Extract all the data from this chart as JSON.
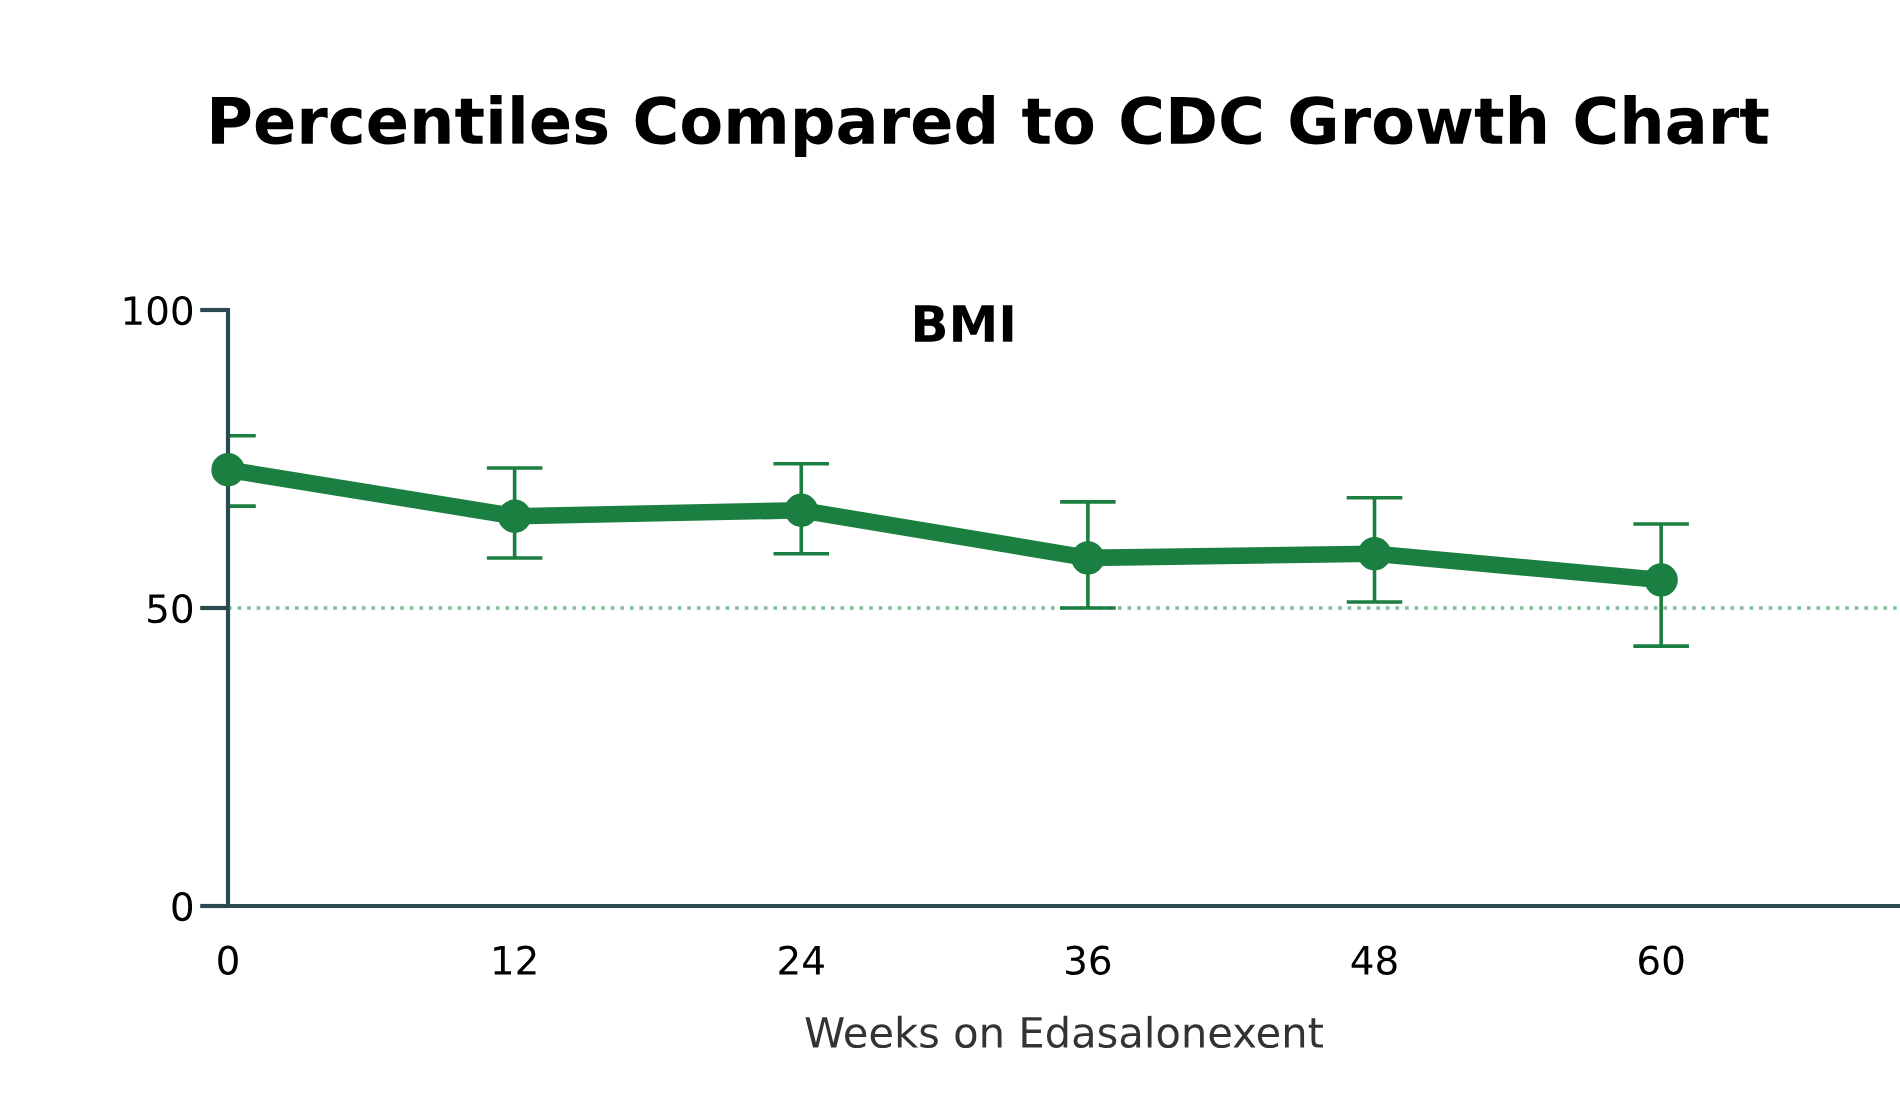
{
  "chart_data": {
    "type": "line",
    "title": "Percentiles Compared to CDC Growth Chart",
    "subtitle": "BMI",
    "xlabel": "Weeks on Edasalonexent",
    "x": [
      0,
      12,
      24,
      36,
      48,
      60
    ],
    "series": [
      {
        "color": "#1a7f40",
        "values": [
          73.2,
          65.4,
          66.4,
          58.4,
          59.1,
          54.7
        ],
        "errors": [
          [
            67.1,
            78.9
          ],
          [
            58.4,
            73.5
          ],
          [
            59.1,
            74.2
          ],
          [
            50.0,
            67.8
          ],
          [
            51.0,
            68.5
          ],
          [
            43.6,
            64.1
          ]
        ]
      }
    ],
    "xlim": [
      0,
      70
    ],
    "xticks": [
      0,
      12,
      24,
      36,
      48,
      60
    ],
    "ylim": [
      0,
      100
    ],
    "yticks": [
      0,
      50,
      100
    ],
    "ref_lines": [
      {
        "axis": "y",
        "value": 50,
        "color": "#7dbf95",
        "line_style": "dotted"
      }
    ],
    "marker": "circle",
    "line_style": "solid",
    "grid": false,
    "legend": false
  }
}
